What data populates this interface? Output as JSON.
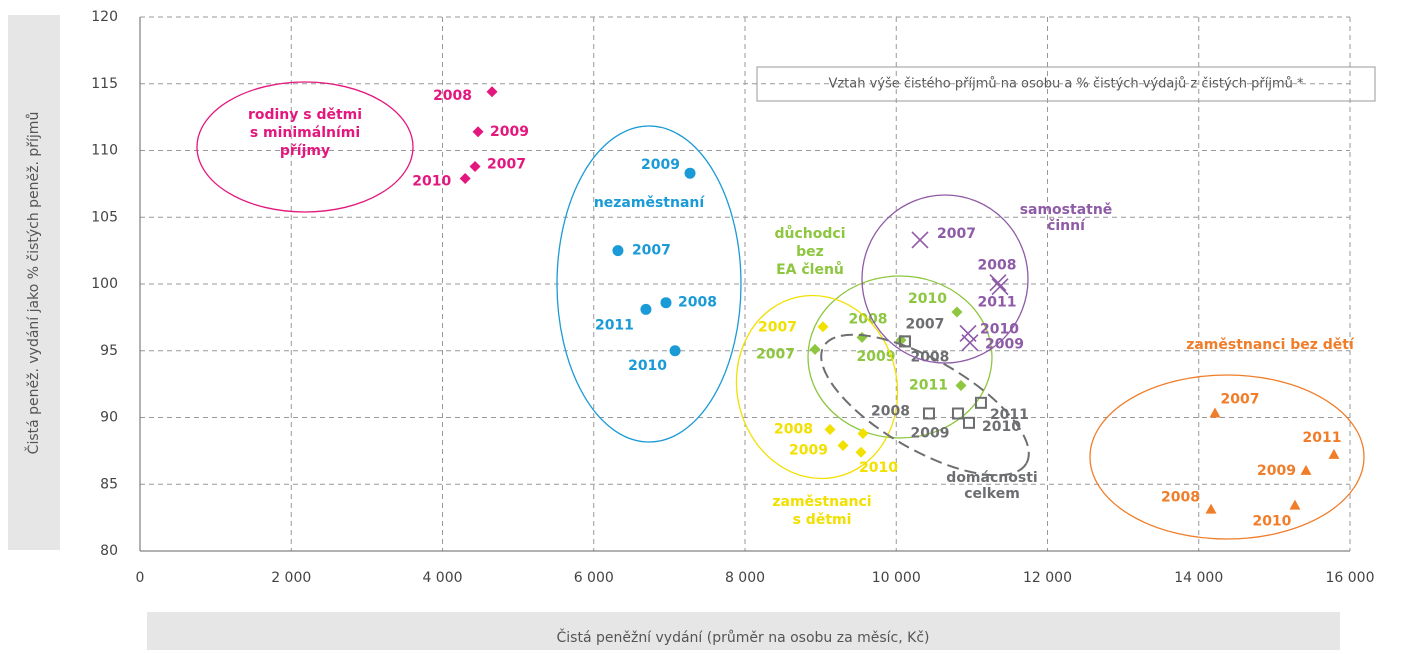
{
  "chart_data": {
    "type": "scatter",
    "box_title": "Vztah výše čistého příjmů na osobu a % čistých výdajů z čistých příjmů *",
    "xlabel": "Čistá peněžní vydání (průměr na osobu za měsíc, Kč)",
    "ylabel": "Čistá peněž. vydání jako % čistých peněž. příjmů",
    "xlim": [
      0,
      16000
    ],
    "xticks": [
      0,
      {
        "value": 2000,
        "label": "2 000"
      },
      {
        "value": 4000,
        "label": "4 000"
      },
      {
        "value": 6000,
        "label": "6 000"
      },
      {
        "value": 8000,
        "label": "8 000"
      },
      {
        "value": 10000,
        "label": "10 000"
      },
      {
        "value": 12000,
        "label": "12 000"
      },
      {
        "value": 14000,
        "label": "14 000"
      },
      {
        "value": 16000,
        "label": "16 000"
      }
    ],
    "ylim": [
      80,
      120
    ],
    "yticks": [
      80,
      85,
      90,
      95,
      100,
      105,
      110,
      115,
      120
    ],
    "grid": true,
    "series": [
      {
        "name": [
          "rodiny s dětmi",
          "s minimálními",
          "příjmy"
        ],
        "color": "#e3177d",
        "marker": "diamond",
        "labels": [
          "2008",
          "2009",
          "2007",
          "2010"
        ],
        "x": [
          4655,
          4470,
          4430,
          4300
        ],
        "values": [
          114.4,
          111.4,
          108.8,
          107.9
        ]
      },
      {
        "name": [
          "nezaměstnaní"
        ],
        "color": "#1a9ad6",
        "marker": "circle",
        "labels": [
          "2009",
          "2007",
          "2008",
          "2011",
          "2010"
        ],
        "x": [
          7273,
          6320,
          6955,
          6690,
          7075
        ],
        "values": [
          108.3,
          102.5,
          98.6,
          98.1,
          95.0
        ]
      },
      {
        "name": [
          "důchodci",
          "bez",
          "EA členů"
        ],
        "color": "#8dc63f",
        "marker": "diamond",
        "labels": [
          "2010",
          "2008",
          "2009",
          "2007",
          "2011"
        ],
        "x": [
          10803,
          9547,
          10063,
          8926,
          10856
        ],
        "values": [
          97.9,
          96.0,
          95.8,
          95.1,
          92.4
        ]
      },
      {
        "name": [
          "zaměstnanci",
          "s dětmi"
        ],
        "color": "#f2e000",
        "marker": "diamond",
        "labels": [
          "2007",
          "2008",
          "2009",
          null,
          "2010"
        ],
        "x": [
          9031,
          9124,
          9296,
          9560,
          9534
        ],
        "values": [
          96.8,
          89.1,
          87.9,
          88.8,
          87.4
        ]
      },
      {
        "name": [
          "domácnosti",
          "celkem"
        ],
        "color": "#6d6e71",
        "marker": "square",
        "labels": [
          "2007",
          "2008",
          "2008",
          "2009",
          "2010",
          "2011"
        ],
        "x": [
          10115,
          10115,
          10433,
          10816,
          10962,
          11120
        ],
        "values": [
          95.7,
          95.7,
          90.3,
          90.3,
          89.6,
          91.1
        ]
      },
      {
        "name": [
          "samostatně",
          "činní"
        ],
        "color": "#8e5ba6",
        "marker": "x",
        "labels": [
          "2007",
          "2008",
          "2011",
          "2010",
          "2009"
        ],
        "x": [
          10314,
          11345,
          11372,
          10949,
          10975
        ],
        "values": [
          103.3,
          100.1,
          99.8,
          96.3,
          95.6
        ]
      },
      {
        "name": [
          "zaměstnanci bez dětí"
        ],
        "color": "#f07d2a",
        "marker": "triangle",
        "labels": [
          "2007",
          "2011",
          "2009",
          "2008",
          "2010"
        ],
        "x": [
          14215,
          15788,
          15418,
          14162,
          15272
        ],
        "values": [
          90.3,
          87.2,
          86.0,
          83.1,
          83.4
        ]
      }
    ]
  }
}
